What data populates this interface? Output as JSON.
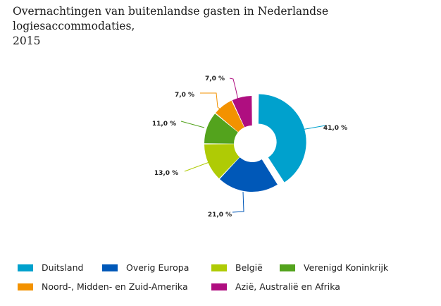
{
  "title_line1": "Overnachtingen van buitenlandse gasten in Nederlandse logiesaccommodaties,",
  "title_line2": "2015",
  "chart_data": {
    "type": "pie",
    "variant": "donut, exploded first slice",
    "title": "Overnachtingen van buitenlandse gasten in Nederlandse logiesaccommodaties, 2015",
    "categories": [
      "Duitsland",
      "Overig Europa",
      "België",
      "Verenigd Koninkrijk",
      "Noord-, Midden- en Zuid-Amerika",
      "Azië, Australië en Afrika"
    ],
    "values": [
      41.0,
      21.0,
      13.0,
      11.0,
      7.0,
      7.0
    ],
    "labels": [
      "41,0 %",
      "21,0 %",
      "13,0 %",
      "11,0 %",
      "7,0 %",
      "7,0 %"
    ],
    "colors": [
      "#00A1CD",
      "#0058B8",
      "#AFCB05",
      "#53A31D",
      "#F39200",
      "#AF0E80"
    ],
    "legend_position": "bottom"
  }
}
